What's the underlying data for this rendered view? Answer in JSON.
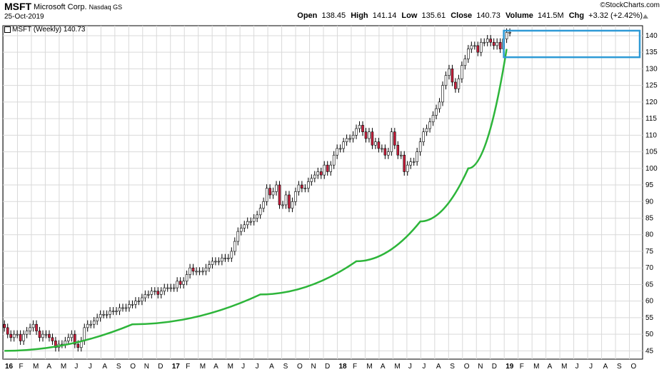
{
  "header": {
    "symbol": "MSFT",
    "company": "Microsoft Corp.",
    "exchange": "Nasdaq GS",
    "date": "25-Oct-2019",
    "brand": "©StockCharts.com",
    "quote": {
      "open_label": "Open",
      "open": "138.45",
      "high_label": "High",
      "high": "141.14",
      "low_label": "Low",
      "low": "135.61",
      "close_label": "Close",
      "close": "140.73",
      "volume_label": "Volume",
      "volume": "141.5M",
      "chg_label": "Chg",
      "chg": "+3.32 (+2.42%)"
    }
  },
  "series_label": "MSFT (Weekly) 140.73",
  "colors": {
    "up": "#ffffff",
    "down": "#cc1f3d",
    "trend": "#2db53a",
    "box": "#2f9ad6",
    "grid": "#d9d9d9"
  },
  "chart_data": {
    "type": "candlestick",
    "title": "MSFT (Weekly) 140.73",
    "x_months": [
      "16",
      "F",
      "M",
      "A",
      "M",
      "J",
      "J",
      "A",
      "S",
      "O",
      "N",
      "D",
      "17",
      "F",
      "M",
      "A",
      "M",
      "J",
      "J",
      "A",
      "S",
      "O",
      "N",
      "D",
      "18",
      "F",
      "M",
      "A",
      "M",
      "J",
      "J",
      "A",
      "S",
      "O",
      "N",
      "D",
      "19",
      "F",
      "M",
      "A",
      "M",
      "J",
      "J",
      "A",
      "S",
      "O"
    ],
    "y_ticks": [
      45,
      50,
      55,
      60,
      65,
      70,
      75,
      80,
      85,
      90,
      95,
      100,
      105,
      110,
      115,
      120,
      125,
      130,
      135,
      140
    ],
    "ylim": [
      42.5,
      143
    ],
    "grid": true,
    "weekly_close": [
      52,
      50,
      49,
      50,
      50,
      48,
      50,
      51,
      52,
      53,
      51,
      49,
      50,
      50,
      49,
      48,
      46,
      47,
      47,
      48,
      49,
      50,
      47,
      46,
      48,
      52,
      53,
      53,
      54,
      55,
      56,
      56,
      56,
      57,
      57,
      57,
      58,
      58,
      58,
      59,
      59,
      60,
      60,
      61,
      62,
      62,
      63,
      63,
      62,
      63,
      64,
      64,
      64,
      64,
      66,
      65,
      66,
      68,
      70,
      69,
      69,
      69,
      69,
      70,
      71,
      72,
      72,
      72,
      73,
      73,
      73,
      75,
      78,
      81,
      82,
      83,
      84,
      84,
      85,
      86,
      88,
      90,
      94,
      92,
      93,
      95,
      89,
      89,
      92,
      88,
      90,
      93,
      95,
      94,
      94,
      96,
      97,
      98,
      99,
      98,
      101,
      99,
      101,
      104,
      106,
      106,
      108,
      109,
      109,
      110,
      112,
      113,
      111,
      109,
      111,
      107,
      108,
      106,
      106,
      104,
      105,
      111,
      107,
      104,
      104,
      99,
      101,
      102,
      102,
      105,
      108,
      111,
      112,
      114,
      116,
      118,
      120,
      125,
      128,
      130,
      126,
      124,
      127,
      131,
      133,
      136,
      137,
      137,
      135,
      138,
      138,
      139,
      138,
      137,
      138,
      136,
      139,
      141,
      141
    ],
    "trend_line": {
      "color": "green",
      "points": [
        [
          0,
          45
        ],
        [
          40,
          53
        ],
        [
          80,
          62
        ],
        [
          110,
          72
        ],
        [
          130,
          84
        ],
        [
          145,
          100
        ],
        [
          157,
          136
        ]
      ]
    },
    "highlight_box": {
      "color": "blue",
      "range_weeks": [
        157,
        183
      ],
      "range_price": [
        133.5,
        141.5
      ]
    }
  }
}
